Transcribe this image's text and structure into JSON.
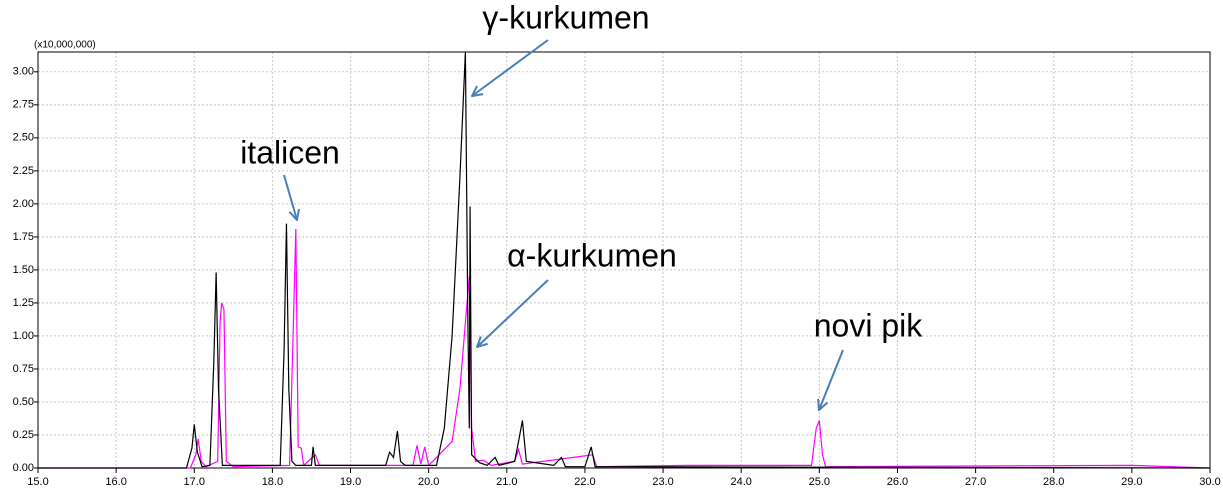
{
  "chart_data": {
    "type": "line",
    "y_unit": "(x10,000,000)",
    "annotations": [
      "γ-kurkumen",
      "italicen",
      "α-kurkumen",
      "novi pik"
    ],
    "xlim": [
      15.0,
      30.0
    ],
    "ylim": [
      0,
      3.15
    ],
    "grid": true,
    "xticks": [
      {
        "value": 15,
        "label": "15.0"
      },
      {
        "value": 16,
        "label": "16.0"
      },
      {
        "value": 17,
        "label": "17.0"
      },
      {
        "value": 18,
        "label": "18.0"
      },
      {
        "value": 19,
        "label": "19.0"
      },
      {
        "value": 20,
        "label": "20.0"
      },
      {
        "value": 21,
        "label": "21.0"
      },
      {
        "value": 22,
        "label": "22.0"
      },
      {
        "value": 23,
        "label": "23.0"
      },
      {
        "value": 24,
        "label": "24.0"
      },
      {
        "value": 25,
        "label": "25.0"
      },
      {
        "value": 26,
        "label": "26.0"
      },
      {
        "value": 27,
        "label": "27.0"
      },
      {
        "value": 28,
        "label": "28.0"
      },
      {
        "value": 29,
        "label": "29.0"
      },
      {
        "value": 30,
        "label": "30.0"
      }
    ],
    "yticks": [
      {
        "value": 0,
        "label": "0.00"
      },
      {
        "value": 0.25,
        "label": "0.25"
      },
      {
        "value": 0.5,
        "label": "0.50"
      },
      {
        "value": 0.75,
        "label": "0.75"
      },
      {
        "value": 1,
        "label": "1.00"
      },
      {
        "value": 1.25,
        "label": "1.25"
      },
      {
        "value": 1.5,
        "label": "1.50"
      },
      {
        "value": 1.75,
        "label": "1.75"
      },
      {
        "value": 2,
        "label": "2.00"
      },
      {
        "value": 2.25,
        "label": "2.25"
      },
      {
        "value": 2.5,
        "label": "2.50"
      },
      {
        "value": 2.75,
        "label": "2.75"
      },
      {
        "value": 3,
        "label": "3.00"
      }
    ],
    "series": [
      {
        "color": "#000000",
        "x": [
          15.0,
          16.9,
          16.97,
          17.0,
          17.04,
          17.1,
          17.2,
          17.25,
          17.28,
          17.31,
          17.36,
          18.1,
          18.15,
          18.18,
          18.21,
          18.25,
          18.3,
          18.5,
          18.52,
          18.55,
          19.45,
          19.5,
          19.55,
          19.6,
          19.64,
          19.7,
          20.1,
          20.2,
          20.3,
          20.4,
          20.47,
          20.5,
          20.52,
          20.53,
          20.55,
          20.65,
          20.75,
          20.85,
          20.9,
          21.1,
          21.15,
          21.2,
          21.25,
          21.6,
          21.7,
          21.75,
          22.0,
          22.08,
          22.13,
          30.0
        ],
        "values": [
          0,
          0,
          0.15,
          0.33,
          0.12,
          0.01,
          0.02,
          0.8,
          1.48,
          0.6,
          0.02,
          0.02,
          0.9,
          1.85,
          0.6,
          0.05,
          0.02,
          0.02,
          0.16,
          0.02,
          0.02,
          0.12,
          0.08,
          0.28,
          0.05,
          0.02,
          0.02,
          0.3,
          1.0,
          2.2,
          3.15,
          1.2,
          0.3,
          1.98,
          0.1,
          0.04,
          0.02,
          0.08,
          0.02,
          0.05,
          0.2,
          0.36,
          0.05,
          0.02,
          0.08,
          0.01,
          0.01,
          0.16,
          0.01,
          0
        ]
      },
      {
        "color": "#ff00ff",
        "x": [
          15.0,
          16.95,
          17.02,
          17.05,
          17.09,
          17.15,
          17.3,
          17.33,
          17.35,
          17.38,
          17.41,
          17.5,
          18.22,
          18.26,
          18.3,
          18.33,
          18.37,
          18.4,
          18.55,
          18.6,
          19.8,
          19.85,
          19.9,
          19.95,
          20.0,
          20.3,
          20.4,
          20.47,
          20.52,
          20.55,
          20.6,
          20.7,
          20.8,
          21.1,
          21.15,
          21.2,
          22.1,
          22.15,
          23.3,
          24.9,
          24.96,
          25.0,
          25.04,
          25.08,
          29.0,
          30.0
        ],
        "values": [
          0,
          0,
          0.1,
          0.22,
          0.05,
          0.01,
          0.05,
          1.1,
          1.25,
          1.2,
          0.05,
          0.01,
          0.02,
          0.9,
          1.81,
          0.16,
          0.15,
          0.02,
          0.1,
          0.02,
          0.02,
          0.17,
          0.03,
          0.16,
          0.02,
          0.2,
          0.6,
          1.1,
          1.45,
          0.3,
          0.05,
          0.06,
          0.02,
          0.05,
          0.14,
          0.03,
          0.1,
          0.01,
          0.02,
          0.02,
          0.3,
          0.36,
          0.1,
          0.01,
          0.02,
          0
        ]
      }
    ]
  }
}
